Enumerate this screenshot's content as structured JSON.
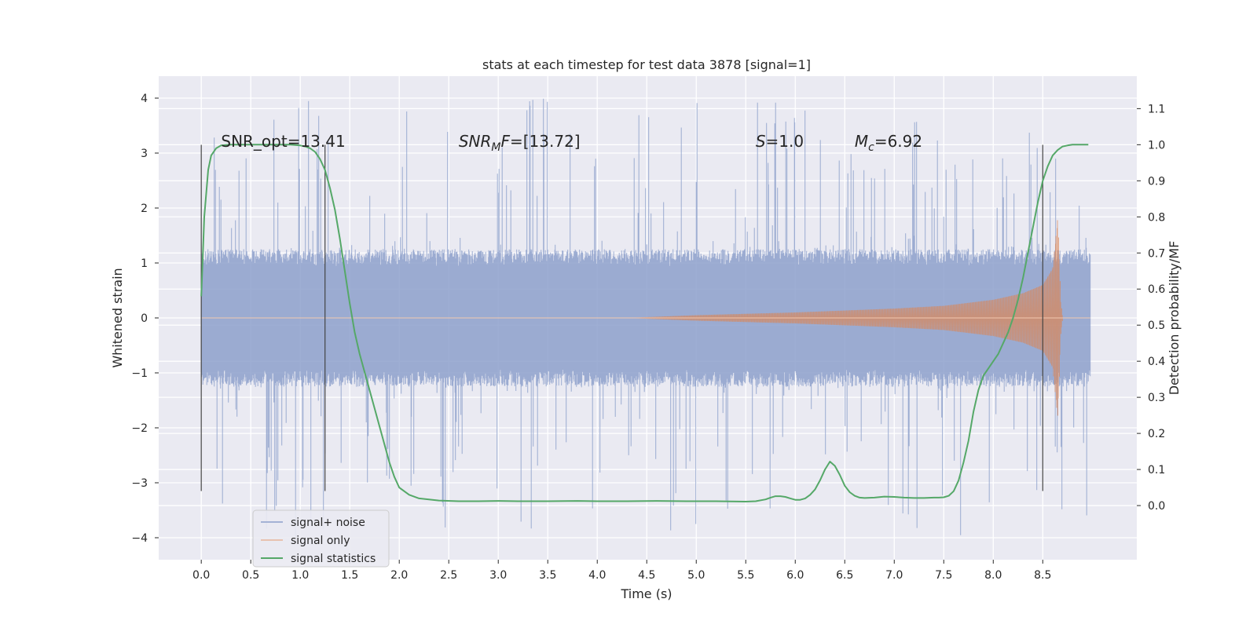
{
  "chart_data": {
    "type": "line",
    "title": "stats at each timestep for test data 3878 [signal=1]",
    "xlabel": "Time (s)",
    "ylabel": "Whitened strain",
    "y2label": "Detection probability/MF",
    "xlim": [
      -0.43,
      9.45
    ],
    "ylim": [
      -4.4,
      4.4
    ],
    "y2lim": [
      -0.15,
      1.19
    ],
    "x_ticks": [
      "0.0",
      "0.5",
      "1.0",
      "1.5",
      "2.0",
      "2.5",
      "3.0",
      "3.5",
      "4.0",
      "4.5",
      "5.0",
      "5.5",
      "6.0",
      "6.5",
      "7.0",
      "7.5",
      "8.0",
      "8.5"
    ],
    "y_ticks": [
      "4",
      "3",
      "2",
      "1",
      "0",
      "−1",
      "−2",
      "−3",
      "−4"
    ],
    "y2_ticks": [
      "1.1",
      "1.0",
      "0.9",
      "0.8",
      "0.7",
      "0.6",
      "0.5",
      "0.4",
      "0.3",
      "0.2",
      "0.1",
      "0.0"
    ],
    "grid": true,
    "legend_position": "lower-left",
    "colors": {
      "noise": "#8da0cb",
      "signal": "#dd8452",
      "stats": "#55a868",
      "background": "#eaeaf2",
      "vline": "#444444"
    },
    "annotations": [
      {
        "text": "SNR_opt=13.41",
        "x": 0.2,
        "y": 3.2
      },
      {
        "text": "SNR",
        "sub": "M",
        "tail": "F=[13.72]",
        "x": 2.6,
        "y": 3.2
      },
      {
        "text": "S",
        "tail": "=1.0",
        "x": 5.6,
        "y": 3.2
      },
      {
        "text": "M",
        "sub": "c",
        "tail": "=6.92",
        "x": 6.6,
        "y": 3.2
      }
    ],
    "vlines": [
      0.0,
      1.25,
      8.5
    ],
    "vline_range": [
      -3.15,
      3.15
    ],
    "series": [
      {
        "name": "signal+ noise",
        "type": "noise",
        "x_range": [
          0.0,
          8.98
        ],
        "envelope": 1.25,
        "spike_max": 4.0,
        "spike_min": -4.0
      },
      {
        "name": "signal only",
        "type": "chirp",
        "x": [
          4.3,
          5.0,
          6.0,
          7.0,
          7.5,
          8.0,
          8.3,
          8.5,
          8.6,
          8.65,
          8.68,
          8.7
        ],
        "amplitude": [
          0.0,
          0.05,
          0.1,
          0.17,
          0.22,
          0.33,
          0.45,
          0.6,
          0.9,
          1.8,
          0.3,
          0.0
        ]
      },
      {
        "name": "signal statistics",
        "type": "line",
        "x": [
          0.0,
          0.03,
          0.07,
          0.1,
          0.15,
          0.2,
          0.3,
          0.5,
          0.7,
          0.9,
          1.0,
          1.05,
          1.1,
          1.15,
          1.2,
          1.25,
          1.3,
          1.35,
          1.4,
          1.45,
          1.5,
          1.55,
          1.6,
          1.65,
          1.7,
          1.75,
          1.8,
          1.85,
          1.9,
          1.95,
          2.0,
          2.1,
          2.2,
          2.4,
          2.6,
          2.8,
          3.0,
          3.2,
          3.5,
          3.8,
          4.0,
          4.3,
          4.6,
          4.9,
          5.2,
          5.5,
          5.6,
          5.7,
          5.75,
          5.8,
          5.85,
          5.9,
          5.95,
          6.0,
          6.05,
          6.1,
          6.15,
          6.2,
          6.25,
          6.3,
          6.35,
          6.4,
          6.45,
          6.5,
          6.55,
          6.6,
          6.65,
          6.7,
          6.8,
          6.9,
          7.0,
          7.1,
          7.2,
          7.3,
          7.4,
          7.45,
          7.5,
          7.55,
          7.6,
          7.65,
          7.7,
          7.75,
          7.8,
          7.85,
          7.9,
          7.95,
          8.0,
          8.05,
          8.1,
          8.15,
          8.2,
          8.25,
          8.3,
          8.35,
          8.4,
          8.45,
          8.5,
          8.55,
          8.6,
          8.65,
          8.7,
          8.75,
          8.8,
          8.9,
          8.96
        ],
        "y": [
          0.58,
          0.8,
          0.93,
          0.97,
          0.99,
          0.998,
          1.0,
          1.0,
          1.0,
          1.0,
          0.998,
          0.995,
          0.99,
          0.98,
          0.96,
          0.93,
          0.88,
          0.82,
          0.74,
          0.65,
          0.56,
          0.48,
          0.42,
          0.37,
          0.32,
          0.27,
          0.22,
          0.17,
          0.12,
          0.08,
          0.05,
          0.03,
          0.02,
          0.014,
          0.012,
          0.012,
          0.013,
          0.012,
          0.012,
          0.013,
          0.012,
          0.012,
          0.013,
          0.012,
          0.012,
          0.011,
          0.012,
          0.017,
          0.022,
          0.026,
          0.026,
          0.024,
          0.02,
          0.016,
          0.016,
          0.02,
          0.03,
          0.045,
          0.07,
          0.1,
          0.122,
          0.11,
          0.085,
          0.055,
          0.037,
          0.027,
          0.022,
          0.021,
          0.022,
          0.025,
          0.024,
          0.022,
          0.021,
          0.021,
          0.022,
          0.022,
          0.023,
          0.027,
          0.04,
          0.07,
          0.12,
          0.18,
          0.26,
          0.32,
          0.36,
          0.38,
          0.4,
          0.42,
          0.45,
          0.48,
          0.52,
          0.57,
          0.63,
          0.7,
          0.77,
          0.84,
          0.9,
          0.94,
          0.97,
          0.985,
          0.995,
          0.998,
          1.0,
          1.0,
          1.0
        ]
      }
    ]
  }
}
